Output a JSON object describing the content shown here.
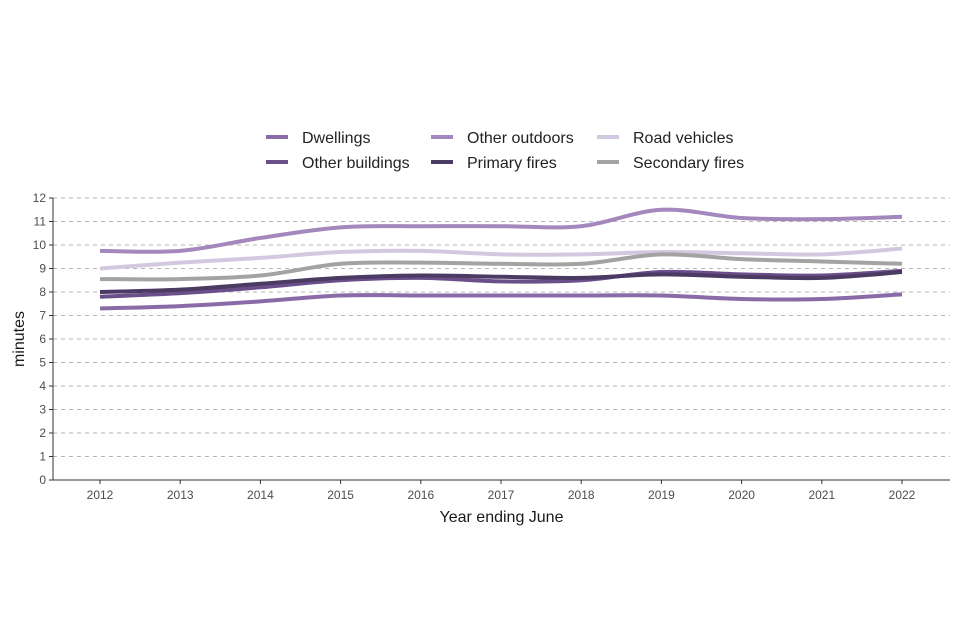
{
  "chart_data": {
    "type": "line",
    "title": "",
    "xlabel": "Year ending June",
    "ylabel": "minutes",
    "ylim": [
      0,
      12
    ],
    "yticks": [
      "0",
      "1",
      "2",
      "3",
      "4",
      "5",
      "6",
      "7",
      "8",
      "9",
      "10",
      "11",
      "12"
    ],
    "grid": "horizontal-dashed",
    "legend_position": "top",
    "x": [
      "2012",
      "2013",
      "2014",
      "2015",
      "2016",
      "2017",
      "2018",
      "2019",
      "2020",
      "2021",
      "2022"
    ],
    "series": [
      {
        "name": "Dwellings",
        "color": "#8a6ba8",
        "values": [
          7.3,
          7.4,
          7.6,
          7.85,
          7.85,
          7.85,
          7.85,
          7.85,
          7.7,
          7.7,
          7.9
        ]
      },
      {
        "name": "Other buildings",
        "color": "#6a4f8a",
        "values": [
          7.8,
          7.95,
          8.2,
          8.5,
          8.6,
          8.45,
          8.5,
          8.85,
          8.75,
          8.7,
          8.9
        ]
      },
      {
        "name": "Other outdoors",
        "color": "#a387bd",
        "values": [
          9.75,
          9.75,
          10.3,
          10.75,
          10.8,
          10.8,
          10.8,
          11.5,
          11.15,
          11.1,
          11.2
        ]
      },
      {
        "name": "Primary fires",
        "color": "#4b3a62",
        "values": [
          8.0,
          8.1,
          8.35,
          8.6,
          8.7,
          8.65,
          8.6,
          8.75,
          8.65,
          8.6,
          8.85
        ]
      },
      {
        "name": "Road vehicles",
        "color": "#d2c8e0",
        "values": [
          9.0,
          9.25,
          9.45,
          9.7,
          9.75,
          9.6,
          9.6,
          9.7,
          9.65,
          9.6,
          9.85
        ]
      },
      {
        "name": "Secondary fires",
        "color": "#a3a3a3",
        "values": [
          8.55,
          8.55,
          8.7,
          9.2,
          9.25,
          9.2,
          9.2,
          9.6,
          9.4,
          9.3,
          9.2
        ]
      }
    ]
  }
}
